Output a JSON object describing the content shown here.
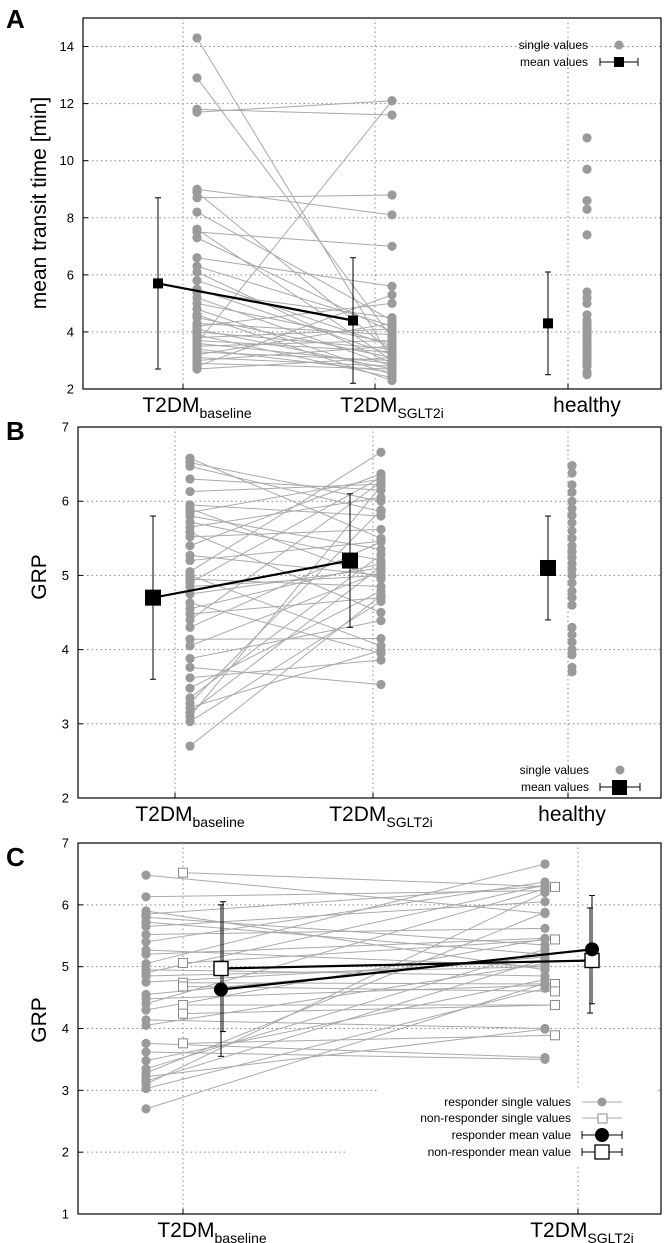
{
  "chart_data": [
    {
      "panel": "A",
      "type": "scatter",
      "categories": [
        {
          "main": "T2DM",
          "sub": "baseline"
        },
        {
          "main": "T2DM",
          "sub": "SGLT2i"
        },
        {
          "main": "healthy",
          "sub": ""
        }
      ],
      "ylabel": "mean transit time [min]",
      "ylim": [
        2,
        15
      ],
      "yticks": [
        2,
        4,
        6,
        8,
        10,
        12,
        14
      ],
      "legend_position": "top-right",
      "legend": [
        {
          "label": "single values",
          "marker": "dot"
        },
        {
          "label": "mean values",
          "marker": "square"
        }
      ],
      "pairs_from_to": [
        [
          14.3,
          3.0
        ],
        [
          12.9,
          3.8
        ],
        [
          11.8,
          11.6
        ],
        [
          11.7,
          12.1
        ],
        [
          9.0,
          8.1
        ],
        [
          8.9,
          3.3
        ],
        [
          8.7,
          8.8
        ],
        [
          8.2,
          4.4
        ],
        [
          7.6,
          3.0
        ],
        [
          7.5,
          7.0
        ],
        [
          7.3,
          4.0
        ],
        [
          6.6,
          5.6
        ],
        [
          6.3,
          4.2
        ],
        [
          6.1,
          2.9
        ],
        [
          5.8,
          3.5
        ],
        [
          5.5,
          3.2
        ],
        [
          5.4,
          4.5
        ],
        [
          5.2,
          2.8
        ],
        [
          5.0,
          3.6
        ],
        [
          4.8,
          2.5
        ],
        [
          4.5,
          3.1
        ],
        [
          4.3,
          3.9
        ],
        [
          4.2,
          5.0
        ],
        [
          4.1,
          2.7
        ],
        [
          4.0,
          3.4
        ],
        [
          3.9,
          2.4
        ],
        [
          3.8,
          4.1
        ],
        [
          3.7,
          3.3
        ],
        [
          3.6,
          2.9
        ],
        [
          3.5,
          3.7
        ],
        [
          3.4,
          2.6
        ],
        [
          3.3,
          3.0
        ],
        [
          3.2,
          4.3
        ],
        [
          3.1,
          2.8
        ],
        [
          3.0,
          3.5
        ],
        [
          2.9,
          2.7
        ],
        [
          2.8,
          5.3
        ],
        [
          2.7,
          3.1
        ],
        [
          3.6,
          12.1
        ],
        [
          4.6,
          2.3
        ]
      ],
      "healthy_values": [
        10.8,
        9.7,
        8.6,
        8.3,
        7.4,
        5.4,
        5.2,
        5.0,
        4.6,
        4.4,
        4.3,
        4.2,
        4.1,
        4.0,
        3.9,
        3.8,
        3.7,
        3.6,
        3.5,
        3.4,
        3.3,
        3.2,
        3.1,
        3.0,
        2.9,
        2.8,
        2.6,
        2.5
      ],
      "means": [
        {
          "category": 0,
          "mean": 5.7,
          "low": 2.7,
          "high": 8.7
        },
        {
          "category": 1,
          "mean": 4.4,
          "low": 2.2,
          "high": 6.6
        },
        {
          "category": 2,
          "mean": 4.3,
          "low": 2.5,
          "high": 6.1
        }
      ]
    },
    {
      "panel": "B",
      "type": "scatter",
      "categories": [
        {
          "main": "T2DM",
          "sub": "baseline"
        },
        {
          "main": "T2DM",
          "sub": "SGLT2i"
        },
        {
          "main": "healthy",
          "sub": ""
        }
      ],
      "ylabel": "GRP",
      "ylim": [
        2,
        7
      ],
      "yticks": [
        2,
        3,
        4,
        5,
        6,
        7
      ],
      "legend_position": "bottom-right",
      "legend": [
        {
          "label": "single values",
          "marker": "dot"
        },
        {
          "label": "mean values",
          "marker": "square"
        }
      ],
      "pairs_from_to": [
        [
          6.58,
          5.5
        ],
        [
          6.52,
          6.0
        ],
        [
          6.47,
          5.86
        ],
        [
          6.3,
          6.15
        ],
        [
          6.13,
          6.23
        ],
        [
          5.95,
          5.8
        ],
        [
          5.9,
          4.95
        ],
        [
          5.85,
          6.3
        ],
        [
          5.8,
          5.35
        ],
        [
          5.72,
          5.2
        ],
        [
          5.65,
          6.05
        ],
        [
          5.58,
          4.5
        ],
        [
          5.52,
          5.62
        ],
        [
          5.4,
          6.37
        ],
        [
          5.27,
          5.0
        ],
        [
          5.2,
          5.46
        ],
        [
          5.05,
          6.66
        ],
        [
          4.95,
          4.85
        ],
        [
          4.9,
          6.32
        ],
        [
          4.85,
          5.0
        ],
        [
          4.75,
          5.1
        ],
        [
          4.63,
          3.95
        ],
        [
          4.55,
          5.16
        ],
        [
          4.48,
          4.7
        ],
        [
          4.4,
          6.26
        ],
        [
          4.3,
          5.45
        ],
        [
          4.14,
          4.15
        ],
        [
          4.05,
          5.05
        ],
        [
          3.88,
          4.39
        ],
        [
          3.76,
          3.53
        ],
        [
          3.62,
          3.86
        ],
        [
          3.48,
          4.79
        ],
        [
          3.35,
          5.28
        ],
        [
          3.28,
          5.88
        ],
        [
          3.22,
          3.99
        ],
        [
          3.15,
          5.12
        ],
        [
          3.1,
          6.2
        ],
        [
          3.03,
          4.65
        ],
        [
          2.7,
          4.73
        ],
        [
          5.0,
          4.05
        ]
      ],
      "healthy_values": [
        6.48,
        6.38,
        6.22,
        6.12,
        6.0,
        5.9,
        5.81,
        5.71,
        5.6,
        5.5,
        5.4,
        5.32,
        5.24,
        5.16,
        5.08,
        5.0,
        4.9,
        4.79,
        4.7,
        4.6,
        4.3,
        4.2,
        4.1,
        4.0,
        3.93,
        3.76,
        3.7
      ],
      "means": [
        {
          "category": 0,
          "mean": 4.7,
          "low": 3.6,
          "high": 5.8
        },
        {
          "category": 1,
          "mean": 5.2,
          "low": 4.3,
          "high": 6.1
        },
        {
          "category": 2,
          "mean": 5.1,
          "low": 4.4,
          "high": 5.8
        }
      ]
    },
    {
      "panel": "C",
      "type": "scatter",
      "categories": [
        {
          "main": "T2DM",
          "sub": "baseline"
        },
        {
          "main": "T2DM",
          "sub": "SGLT2i"
        }
      ],
      "ylabel": "GRP",
      "ylim": [
        1,
        7
      ],
      "yticks": [
        1,
        2,
        3,
        4,
        5,
        6,
        7
      ],
      "legend_position": "bottom-right",
      "legend": [
        {
          "label": "responder single values",
          "marker": "dot"
        },
        {
          "label": "non-responder single values",
          "marker": "open-square"
        },
        {
          "label": "responder mean value",
          "marker": "circle"
        },
        {
          "label": "non-responder mean value",
          "marker": "big-open-square"
        }
      ],
      "responder_pairs": [
        [
          6.48,
          5.86
        ],
        [
          6.13,
          6.23
        ],
        [
          5.9,
          4.95
        ],
        [
          5.85,
          6.3
        ],
        [
          5.8,
          5.35
        ],
        [
          5.72,
          5.2
        ],
        [
          5.65,
          6.05
        ],
        [
          5.52,
          5.62
        ],
        [
          5.4,
          6.37
        ],
        [
          5.27,
          5.0
        ],
        [
          5.2,
          5.46
        ],
        [
          5.05,
          6.66
        ],
        [
          4.95,
          4.85
        ],
        [
          4.9,
          6.32
        ],
        [
          4.85,
          5.0
        ],
        [
          4.75,
          5.1
        ],
        [
          4.55,
          5.16
        ],
        [
          4.48,
          4.7
        ],
        [
          4.4,
          6.26
        ],
        [
          4.3,
          5.45
        ],
        [
          4.14,
          4.0
        ],
        [
          4.05,
          5.05
        ],
        [
          3.76,
          3.53
        ],
        [
          3.62,
          3.5
        ],
        [
          3.48,
          4.79
        ],
        [
          3.35,
          5.28
        ],
        [
          3.28,
          5.88
        ],
        [
          3.22,
          3.99
        ],
        [
          3.15,
          5.12
        ],
        [
          3.1,
          6.2
        ],
        [
          3.03,
          4.65
        ],
        [
          2.7,
          4.73
        ]
      ],
      "nonresponder_pairs": [
        [
          6.52,
          6.29
        ],
        [
          5.06,
          5.44
        ],
        [
          4.74,
          4.72
        ],
        [
          4.68,
          4.6
        ],
        [
          4.38,
          4.38
        ],
        [
          4.24,
          4.38
        ],
        [
          3.76,
          3.89
        ]
      ],
      "responder_mean": {
        "from": 4.63,
        "to": 5.28,
        "from_err": [
          3.55,
          6.0
        ],
        "to_err": [
          4.4,
          6.15
        ]
      },
      "nonresponder_mean": {
        "from": 4.97,
        "to": 5.1,
        "from_err": [
          3.95,
          6.05
        ],
        "to_err": [
          4.25,
          5.95
        ]
      }
    }
  ],
  "colors": {
    "dot": "#9a9a9a",
    "pair_line": "#a9a9a9",
    "mean": "#000000",
    "grid": "#888888"
  }
}
